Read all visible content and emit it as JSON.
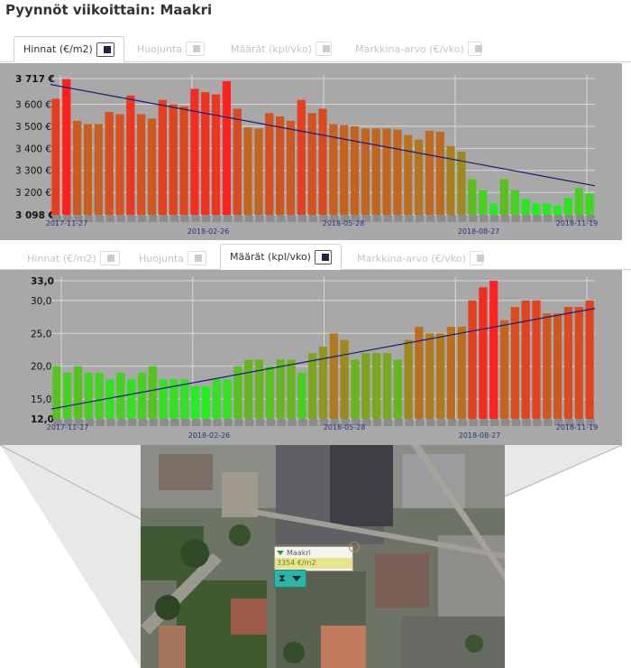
{
  "page": {
    "title": "Pyynnöt viikoittain: Maakri"
  },
  "tabs_top": [
    {
      "label": "Hinnat (€/m2)",
      "active": true
    },
    {
      "label": "Huojunta",
      "active": false
    },
    {
      "label": "Määrät (kpl/vko)",
      "active": false
    },
    {
      "label": "Markkina-arvo (€/vko)",
      "active": false
    }
  ],
  "tabs_mid": [
    {
      "label": "Hinnat (€/m2)",
      "active": false
    },
    {
      "label": "Huojunta",
      "active": false
    },
    {
      "label": "Määrät (kpl/vko)",
      "active": true
    },
    {
      "label": "Markkina-arvo (€/vko)",
      "active": false
    }
  ],
  "chart_data": [
    {
      "type": "bar",
      "ylim": [
        3098,
        3717
      ],
      "yticks": [
        "3 098 €",
        "3 200 €",
        "3 300 €",
        "3 400 €",
        "3 500 €",
        "3 600 €",
        "3 717 €"
      ],
      "ytick_values": [
        3098,
        3200,
        3300,
        3400,
        3500,
        3600,
        3717
      ],
      "xticks": [
        "2017-11-27",
        "2018-02-26",
        "2018-05-28",
        "2018-08-27",
        "2018-11-19"
      ],
      "values": [
        3625,
        3715,
        3525,
        3510,
        3510,
        3565,
        3555,
        3640,
        3555,
        3535,
        3620,
        3600,
        3590,
        3670,
        3655,
        3645,
        3705,
        3580,
        3495,
        3490,
        3560,
        3545,
        3525,
        3620,
        3560,
        3580,
        3510,
        3505,
        3500,
        3490,
        3490,
        3490,
        3485,
        3460,
        3440,
        3480,
        3475,
        3410,
        3385,
        3260,
        3210,
        3150,
        3260,
        3210,
        3170,
        3150,
        3150,
        3140,
        3175,
        3220,
        3195
      ],
      "trend": {
        "start": 3690,
        "end": 3230
      },
      "colors": {
        "high": "#ff2020",
        "low": "#22ee22",
        "trend": "#1a1a7a"
      }
    },
    {
      "type": "bar",
      "ylim": [
        12,
        33
      ],
      "yticks": [
        "12,0",
        "15,0",
        "20,0",
        "25,0",
        "30,0",
        "33,0"
      ],
      "ytick_values": [
        12,
        15,
        20,
        25,
        30,
        33
      ],
      "xticks": [
        "2017-11-27",
        "2018-02-26",
        "2018-05-28",
        "2018-08-27",
        "2018-11-19"
      ],
      "values": [
        20,
        19,
        20,
        19,
        19,
        18,
        19,
        18,
        19,
        20,
        18,
        18,
        18,
        17,
        17,
        18,
        18,
        20,
        21,
        21,
        20,
        21,
        21,
        19,
        22,
        23,
        25,
        24,
        21,
        22,
        22,
        22,
        21,
        24,
        26,
        25,
        25,
        26,
        26,
        30,
        32,
        33,
        27,
        29,
        30,
        30,
        28,
        28,
        29,
        29,
        30
      ],
      "trend": {
        "start": 13.5,
        "end": 28.8
      },
      "colors": {
        "high": "#ff2020",
        "low": "#22ee22",
        "trend": "#1a1a7a"
      }
    }
  ],
  "map": {
    "popup": {
      "title": "Maakri",
      "value": "3354 €/m2"
    }
  }
}
